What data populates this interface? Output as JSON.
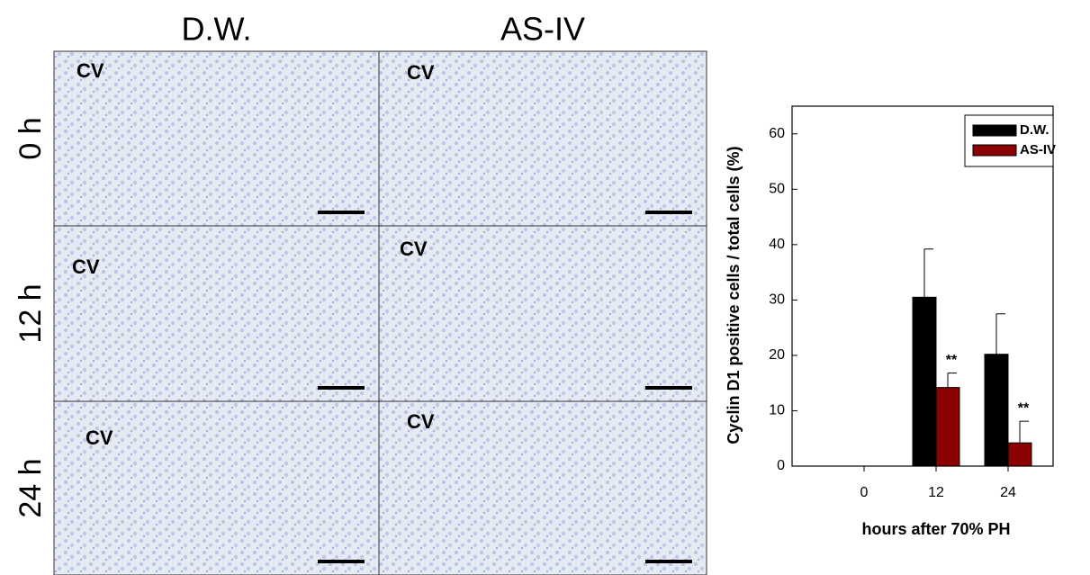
{
  "micrographs": {
    "columns": [
      "D.W.",
      "AS-IV"
    ],
    "rows": [
      "0 h",
      "12 h",
      "24 h"
    ],
    "cell_label": "CV"
  },
  "chart_data": {
    "type": "bar",
    "ylabel": "Cyclin D1 positive cells / total cells (%)",
    "xlabel": "hours after 70% PH",
    "categories": [
      "0",
      "12",
      "24"
    ],
    "series": [
      {
        "name": "D.W.",
        "color": "#000000",
        "values": [
          0,
          30.5,
          20.2
        ],
        "errors": [
          0,
          8.7,
          7.3
        ]
      },
      {
        "name": "AS-IV",
        "color": "#8b0000",
        "values": [
          0,
          14.2,
          4.2
        ],
        "errors": [
          0,
          2.6,
          3.9
        ],
        "annotations": [
          null,
          "**",
          "**"
        ]
      }
    ],
    "ylim": [
      0,
      65
    ],
    "yticks": [
      0,
      10,
      20,
      30,
      40,
      50,
      60
    ],
    "legend": "upper right"
  }
}
